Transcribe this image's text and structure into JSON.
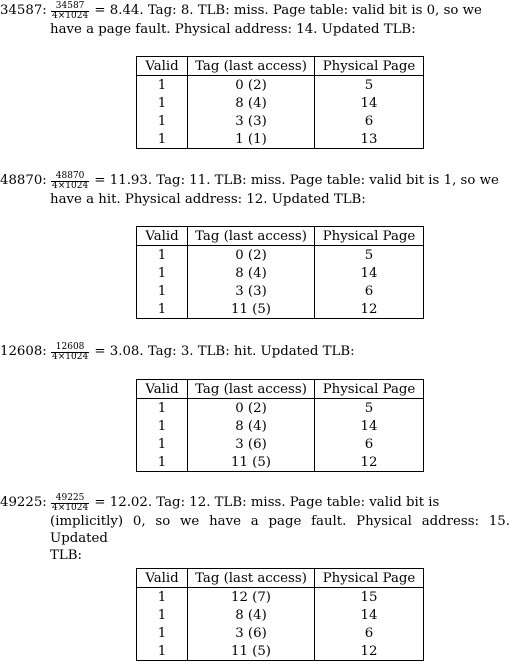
{
  "columns": [
    "Valid",
    "Tag (last access)",
    "Physical Page"
  ],
  "entries": [
    {
      "address": "34587:",
      "num": "34587",
      "den": "4×1024",
      "line1": "= 8.44. Tag: 8. TLB: miss. Page table: valid bit is 0, so we",
      "line2": "have a page fault. Physical address: 14. Updated TLB:",
      "rows": [
        [
          "1",
          "0 (2)",
          "5"
        ],
        [
          "1",
          "8 (4)",
          "14"
        ],
        [
          "1",
          "3 (3)",
          "6"
        ],
        [
          "1",
          "1 (1)",
          "13"
        ]
      ]
    },
    {
      "address": "48870:",
      "num": "48870",
      "den": "4×1024",
      "line1": "= 11.93. Tag: 11. TLB: miss. Page table: valid bit is 1, so we",
      "line2": "have a hit. Physical address: 12. Updated TLB:",
      "rows": [
        [
          "1",
          "0 (2)",
          "5"
        ],
        [
          "1",
          "8 (4)",
          "14"
        ],
        [
          "1",
          "3 (3)",
          "6"
        ],
        [
          "1",
          "11 (5)",
          "12"
        ]
      ]
    },
    {
      "address": "12608:",
      "num": "12608",
      "den": "4×1024",
      "line1": "= 3.08. Tag: 3. TLB: hit. Updated TLB:",
      "rows": [
        [
          "1",
          "0 (2)",
          "5"
        ],
        [
          "1",
          "8 (4)",
          "14"
        ],
        [
          "1",
          "3 (6)",
          "6"
        ],
        [
          "1",
          "11 (5)",
          "12"
        ]
      ]
    },
    {
      "address": "49225:",
      "num": "49225",
      "den": "4×1024",
      "line1": "= 12.02. Tag: 12. TLB: miss. Page table: valid bit is",
      "line2": "(implicitly) 0, so we have a page fault. Physical address: 15. Updated",
      "line3": "TLB:",
      "rows": [
        [
          "1",
          "12 (7)",
          "15"
        ],
        [
          "1",
          "8 (4)",
          "14"
        ],
        [
          "1",
          "3 (6)",
          "6"
        ],
        [
          "1",
          "11 (5)",
          "12"
        ]
      ]
    }
  ]
}
